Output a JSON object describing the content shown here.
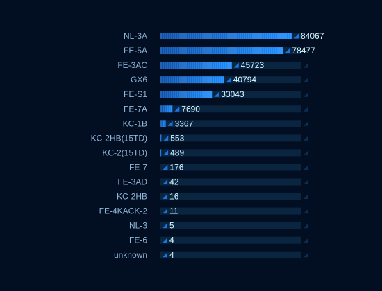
{
  "chart_data": {
    "type": "bar",
    "orientation": "horizontal",
    "categories": [
      "NL-3A",
      "FE-5A",
      "FE-3AC",
      "GX6",
      "FE-S1",
      "FE-7A",
      "KC-1B",
      "KC-2HB(15TD)",
      "KC-2(15TD)",
      "FE-7",
      "FE-3AD",
      "KC-2HB",
      "FE-4KACK-2",
      "NL-3",
      "FE-6",
      "unknown"
    ],
    "values": [
      84067,
      78477,
      45723,
      40794,
      33043,
      7690,
      3367,
      553,
      489,
      176,
      42,
      16,
      11,
      5,
      4,
      4
    ],
    "xlim": [
      0,
      84067
    ],
    "grid": false,
    "legend": "none",
    "colors": {
      "background": "#020f22",
      "bar_start": "#0b4fa8",
      "bar_end": "#1a8cff",
      "track": "#0a2540",
      "marker": "#1874e6",
      "category_text": "#8fb6d9",
      "value_text": "#d7f6ff"
    }
  }
}
